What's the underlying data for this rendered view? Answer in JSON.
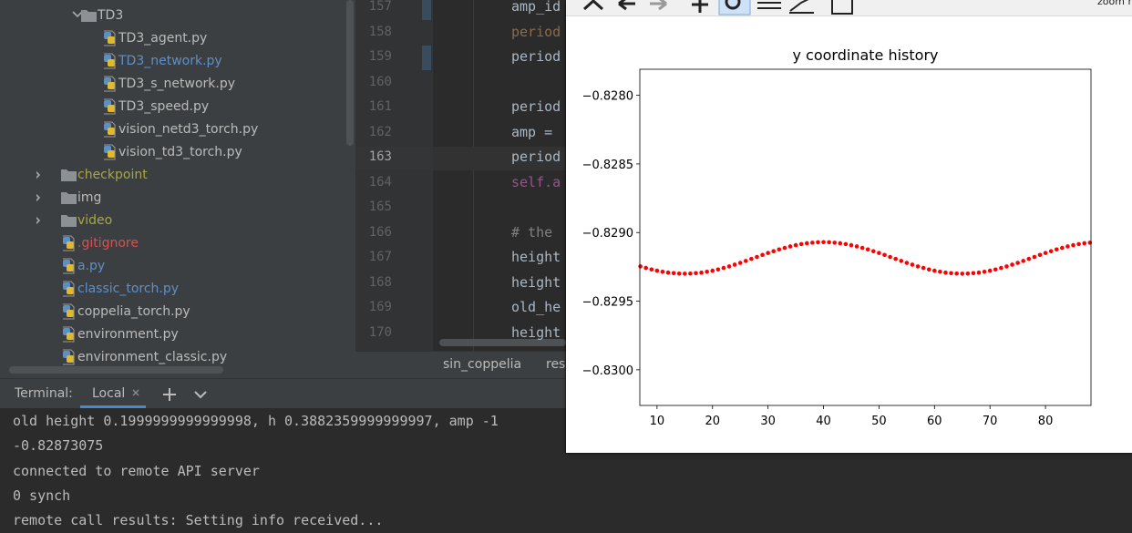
{
  "project_tree": {
    "items": [
      "TD3",
      "TD3_agent.py",
      "TD3_network.py",
      "TD3_s_network.py",
      "TD3_speed.py",
      "vision_netd3_torch.py",
      "vision_td3_torch.py",
      "checkpoint",
      "img",
      "video",
      ".gitignore",
      "a.py",
      "classic_torch.py",
      "coppelia_torch.py",
      "environment.py",
      "environment_classic.py"
    ]
  },
  "editor": {
    "lines": [
      {
        "number": 157,
        "code": "amp_id"
      },
      {
        "number": 158,
        "code": "period"
      },
      {
        "number": 159,
        "code": "period"
      },
      {
        "number": 160
      },
      {
        "number": 161,
        "code": "period"
      },
      {
        "number": 162,
        "code": "amp ="
      },
      {
        "number": 163,
        "code": "period"
      },
      {
        "number": 164,
        "code": "self.a"
      },
      {
        "number": 165
      },
      {
        "number": 166,
        "code": "# the"
      },
      {
        "number": 167,
        "code": "height"
      },
      {
        "number": 168,
        "code": "height"
      },
      {
        "number": 169,
        "code": "old_he"
      },
      {
        "number": 170,
        "code": "height"
      }
    ],
    "tabs": [
      "sin_coppelia",
      "rese"
    ]
  },
  "terminal": {
    "label": "Terminal:",
    "tab": "Local",
    "lines": [
      "old height 0.1999999999999998, h 0.3882359999999997, amp -1",
      "-0.82873075",
      "connected to remote API server",
      "0 synch",
      "remote call results: Setting info received..."
    ]
  },
  "window_corner_text": "zoom r",
  "chart_data": {
    "type": "scatter",
    "title": "y coordinate history",
    "color": "#ff0000",
    "x": [
      7,
      8,
      9,
      10,
      11,
      12,
      13,
      14,
      15,
      16,
      17,
      18,
      19,
      20,
      21,
      22,
      23,
      24,
      25,
      26,
      27,
      28,
      29,
      30,
      31,
      32,
      33,
      34,
      35,
      36,
      37,
      38,
      39,
      40,
      41,
      42,
      43,
      44,
      45,
      46,
      47,
      48,
      49,
      50,
      51,
      52,
      53,
      54,
      55,
      56,
      57,
      58,
      59,
      60,
      61,
      62,
      63,
      64,
      65,
      66,
      67,
      68,
      69,
      70,
      71,
      72,
      73,
      74,
      75,
      76,
      77,
      78,
      79,
      80,
      81,
      82,
      83,
      84,
      85,
      86,
      87,
      88
    ],
    "values": [
      -0.829247,
      -0.829258,
      -0.829269,
      -0.829278,
      -0.829286,
      -0.829292,
      -0.829296,
      -0.829299,
      -0.8293,
      -0.829299,
      -0.829296,
      -0.829292,
      -0.829286,
      -0.829278,
      -0.829269,
      -0.829258,
      -0.829247,
      -0.829234,
      -0.829221,
      -0.829207,
      -0.829192,
      -0.829178,
      -0.829163,
      -0.829149,
      -0.829136,
      -0.829123,
      -0.829112,
      -0.829101,
      -0.829092,
      -0.829084,
      -0.829078,
      -0.829074,
      -0.829071,
      -0.82907,
      -0.829071,
      -0.829074,
      -0.829078,
      -0.829084,
      -0.829092,
      -0.829101,
      -0.829112,
      -0.829123,
      -0.829136,
      -0.829149,
      -0.829163,
      -0.829178,
      -0.829192,
      -0.829207,
      -0.829221,
      -0.829234,
      -0.829247,
      -0.829258,
      -0.829269,
      -0.829278,
      -0.829286,
      -0.829292,
      -0.829296,
      -0.829299,
      -0.8293,
      -0.829299,
      -0.829296,
      -0.829292,
      -0.829286,
      -0.829278,
      -0.829269,
      -0.829258,
      -0.829247,
      -0.829234,
      -0.829221,
      -0.829207,
      -0.829192,
      -0.829178,
      -0.829163,
      -0.829149,
      -0.829136,
      -0.829123,
      -0.829112,
      -0.829101,
      -0.829092,
      -0.829084,
      -0.829078,
      -0.829074
    ],
    "xlim": [
      6.9,
      88.2
    ],
    "xticks": [
      10,
      20,
      30,
      40,
      50,
      60,
      70,
      80
    ],
    "ylim": [
      -0.83026,
      -0.82781
    ],
    "yticks": [
      {
        "value": -0.83,
        "label": "−0.8300"
      },
      {
        "value": -0.8295,
        "label": "−0.8295"
      },
      {
        "value": -0.829,
        "label": "−0.8290"
      },
      {
        "value": -0.8285,
        "label": "−0.8285"
      },
      {
        "value": -0.828,
        "label": "−0.8280"
      }
    ]
  }
}
